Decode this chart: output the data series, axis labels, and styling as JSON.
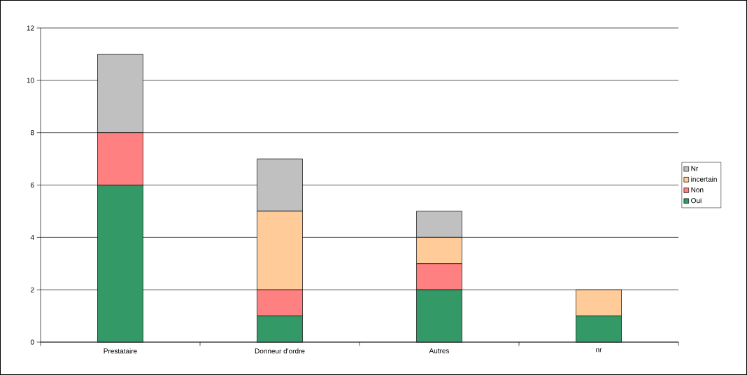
{
  "chart_data": {
    "type": "bar",
    "stacked": true,
    "categories": [
      "Prestataire",
      "Donneur d'ordre",
      "Autres",
      "nr"
    ],
    "series": [
      {
        "name": "Oui",
        "color": "#339966",
        "values": [
          6,
          1,
          2,
          1
        ]
      },
      {
        "name": "Non",
        "color": "#ff8080",
        "values": [
          2,
          1,
          1,
          0
        ]
      },
      {
        "name": "incertain",
        "color": "#ffcc99",
        "values": [
          0,
          3,
          1,
          1
        ]
      },
      {
        "name": "Nr",
        "color": "#c0c0c0",
        "values": [
          3,
          2,
          1,
          0
        ]
      }
    ],
    "ylim": [
      0,
      12
    ],
    "yticks": [
      0,
      2,
      4,
      6,
      8,
      10,
      12
    ],
    "grid": "y",
    "legend": "right"
  }
}
